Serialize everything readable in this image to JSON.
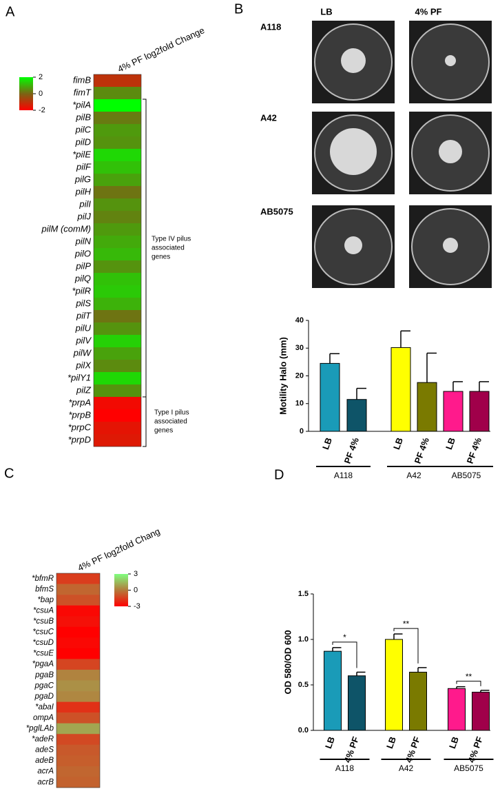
{
  "panels": [
    "A",
    "B",
    "C",
    "D"
  ],
  "photos": {
    "columns": [
      "LB",
      "4% PF"
    ],
    "rows": [
      "A118",
      "A42",
      "AB5075"
    ]
  },
  "chart_data": [
    {
      "type": "heatmap",
      "column_label": "4% PF log2fold Change",
      "categories": [
        "fimB",
        "fimT",
        "*pilA",
        "pilB",
        "pilC",
        "pilD",
        "*pilE",
        "pilF",
        "pilG",
        "pilH",
        "pilI",
        "pilJ",
        "pilM (comM)",
        "pilN",
        "pilO",
        "pilP",
        "pilQ",
        "*pilR",
        "pilS",
        "pilT",
        "pilU",
        "pilV",
        "pilW",
        "pilX",
        "*pilY1",
        "pilZ",
        "*prpA",
        "*prpB",
        "*prpC",
        "*prpD"
      ],
      "values": [
        -1,
        0.5,
        2,
        0.3,
        0.7,
        0.6,
        1.5,
        1.2,
        0.8,
        0.2,
        0.6,
        0.4,
        0.7,
        0.9,
        1.1,
        0.6,
        1.2,
        1.3,
        1,
        0.2,
        0.6,
        1.4,
        0.8,
        0.5,
        1.5,
        0.6,
        -1.8,
        -2,
        -1.6,
        -1.5
      ],
      "clim": [
        -2,
        2
      ],
      "cticks": [
        2,
        0,
        -2
      ],
      "colors": [
        "#ff0000",
        "#7a6414",
        "#00ff00"
      ],
      "annotations": [
        [
          "Type IV pilus",
          "associated",
          "genes"
        ],
        [
          "Type I pilus",
          "associated",
          "genes"
        ]
      ]
    },
    {
      "type": "bar",
      "ylabel": "Motility Halo (mm)",
      "categories": [
        "LB",
        "PF 4%",
        "LB",
        "PF 4%",
        "LB",
        "PF 4%"
      ],
      "groups": [
        "A118",
        "A42",
        "AB5075"
      ],
      "values": [
        24.5,
        11.5,
        30.2,
        17.6,
        14.4,
        14.4
      ],
      "errors": [
        3.5,
        4,
        6,
        10.6,
        3.5,
        3.5
      ],
      "colors": [
        "#1a9bb8",
        "#0e5468",
        "#ffff00",
        "#7a7a00",
        "#ff1a8c",
        "#a0004a"
      ],
      "ylim": [
        0,
        40
      ],
      "yticks": [
        0,
        10,
        20,
        30,
        40
      ]
    },
    {
      "type": "heatmap",
      "column_label": "4% PF log2fold Chang",
      "categories": [
        "*bfmR",
        "bfmS",
        "*bap",
        "*csuA",
        "*csuB",
        "*csuC",
        "*csuD",
        "*csuE",
        "*pgaA",
        "pgaB",
        "pgaC",
        "pgaD",
        "*abaI",
        "ompA",
        "*pglLAb",
        "*adeR",
        "adeS",
        "adeB",
        "acrA",
        "acrB"
      ],
      "values": [
        -1.5,
        -0.5,
        -1,
        -2.8,
        -2.6,
        -3,
        -2.8,
        -3,
        -1.3,
        0.2,
        0.5,
        0.3,
        -1.8,
        -1,
        1,
        -1.2,
        -0.8,
        -0.7,
        -0.5,
        -0.6
      ],
      "clim": [
        -3,
        3
      ],
      "cticks": [
        3,
        0,
        -3
      ],
      "colors": [
        "#ff0000",
        "#b47a3a",
        "#7fff7f"
      ]
    },
    {
      "type": "bar",
      "ylabel": "OD 580/OD 600",
      "categories": [
        "LB",
        "4% PF",
        "LB",
        "4% PF",
        "LB",
        "4% PF"
      ],
      "groups": [
        "A118",
        "A42",
        "AB5075"
      ],
      "values": [
        0.87,
        0.6,
        1.0,
        0.64,
        0.46,
        0.42
      ],
      "errors": [
        0.04,
        0.04,
        0.06,
        0.05,
        0.02,
        0.02
      ],
      "colors": [
        "#1a9bb8",
        "#0e5468",
        "#ffff00",
        "#7a7a00",
        "#ff1a8c",
        "#a0004a"
      ],
      "ylim": [
        0,
        1.5
      ],
      "yticks": [
        {
          "value": 0,
          "label": "0.0"
        },
        0.5,
        {
          "value": 1,
          "label": "1.0"
        },
        1.5
      ],
      "annotations": [
        "*",
        "**",
        "**"
      ]
    }
  ]
}
